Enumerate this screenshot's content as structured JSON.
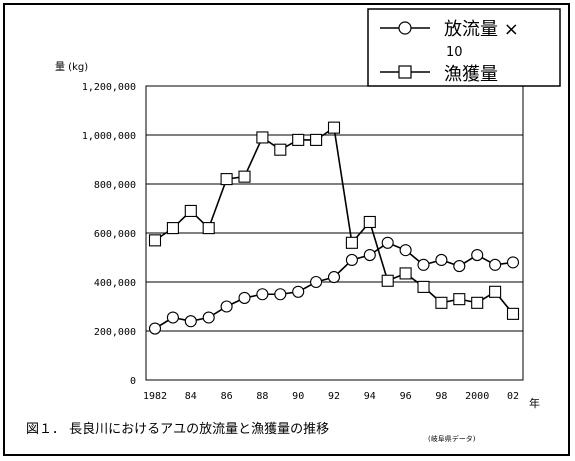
{
  "chart_data": {
    "type": "line",
    "title": "",
    "ylabel": "量 (kg)",
    "xlabel_unit": "年",
    "ylim": [
      0,
      1200000
    ],
    "yticks": [
      "0",
      "200,000",
      "400,000",
      "600,000",
      "800,000",
      "1,000,000",
      "1,200,000"
    ],
    "yticks_values": [
      0,
      200000,
      400000,
      600000,
      800000,
      1000000,
      1200000
    ],
    "x": [
      1982,
      1983,
      1984,
      1985,
      1986,
      1987,
      1988,
      1989,
      1990,
      1991,
      1992,
      1993,
      1994,
      1995,
      1996,
      1997,
      1998,
      1999,
      2000,
      2001,
      2002
    ],
    "xticks": [
      "1982",
      "84",
      "86",
      "88",
      "90",
      "92",
      "94",
      "96",
      "98",
      "2000",
      "02"
    ],
    "xticks_values": [
      1982,
      1984,
      1986,
      1988,
      1990,
      1992,
      1994,
      1996,
      1998,
      2000,
      2002
    ],
    "grid": "horizontal",
    "legend_position": "top-right",
    "series": [
      {
        "name": "放流量 ×10",
        "marker": "circle",
        "values": [
          210000,
          255000,
          240000,
          255000,
          300000,
          335000,
          350000,
          350000,
          360000,
          400000,
          420000,
          490000,
          510000,
          560000,
          530000,
          470000,
          490000,
          465000,
          510000,
          470000,
          480000
        ]
      },
      {
        "name": "漁獲量",
        "marker": "square",
        "values": [
          570000,
          620000,
          690000,
          620000,
          820000,
          830000,
          990000,
          940000,
          980000,
          980000,
          1030000,
          560000,
          645000,
          405000,
          435000,
          380000,
          315000,
          330000,
          315000,
          360000,
          270000
        ]
      }
    ]
  },
  "legend": {
    "release_line1": "放流量 ×",
    "release_line2": "10",
    "catch": "漁獲量"
  },
  "caption": {
    "main": "図１． 長良川におけるアユの放流量と漁獲量の推移",
    "source": "(岐阜県データ)"
  }
}
